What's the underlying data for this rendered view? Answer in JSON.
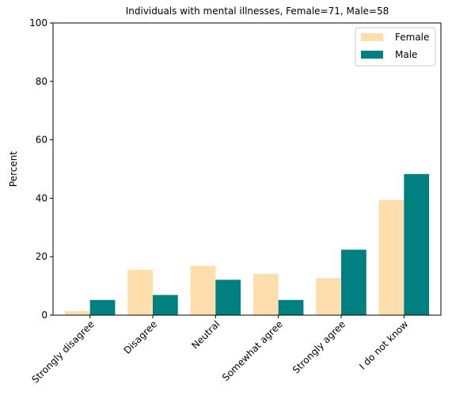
{
  "chart_data": {
    "type": "bar",
    "title": "Individuals with mental illnesses, Female=71, Male=58",
    "xlabel": "",
    "ylabel": "Percent",
    "categories": [
      "Strongly disagree",
      "Disagree",
      "Neutral",
      "Somewhat agree",
      "Strongly agree",
      "I do not know"
    ],
    "series": [
      {
        "name": "Female",
        "color": "#ffdead",
        "values": [
          1.4,
          15.5,
          16.9,
          14.1,
          12.7,
          39.4
        ]
      },
      {
        "name": "Male",
        "color": "#008080",
        "values": [
          5.2,
          6.9,
          12.1,
          5.2,
          22.4,
          48.3
        ]
      }
    ],
    "ylim": [
      0,
      100
    ],
    "yticks": [
      0,
      20,
      40,
      60,
      80,
      100
    ],
    "grid": false,
    "legend_position": "top-right"
  }
}
